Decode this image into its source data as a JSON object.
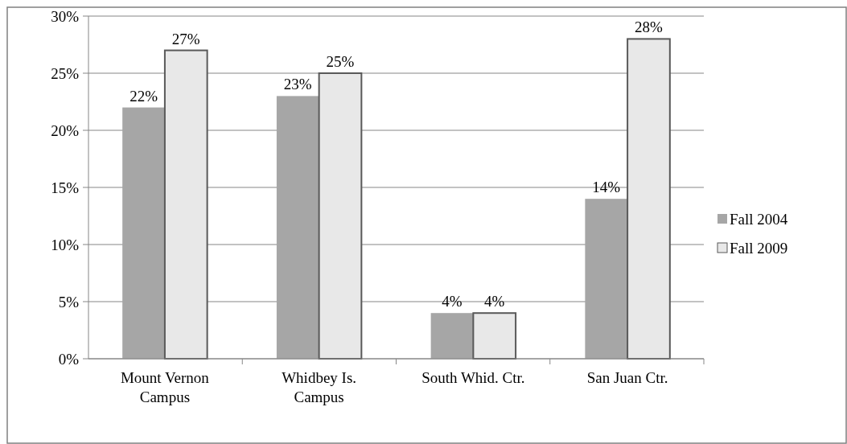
{
  "chart_data": {
    "type": "bar",
    "categories": [
      "Mount Vernon\nCampus",
      "Whidbey Is.\nCampus",
      "South Whid. Ctr.",
      "San Juan Ctr."
    ],
    "series": [
      {
        "name": "Fall 2004",
        "color": "#a6a6a6",
        "values": [
          22,
          23,
          4,
          14
        ],
        "value_labels": [
          "22%",
          "23%",
          "4%",
          "14%"
        ]
      },
      {
        "name": "Fall 2009",
        "color": "#e8e8e8",
        "values": [
          27,
          25,
          4,
          28
        ],
        "value_labels": [
          "27%",
          "25%",
          "4%",
          "28%"
        ]
      }
    ],
    "ylim": [
      0,
      30
    ],
    "yticks": [
      {
        "value": 0,
        "label": "0%"
      },
      {
        "value": 5,
        "label": "5%"
      },
      {
        "value": 10,
        "label": "10%"
      },
      {
        "value": 15,
        "label": "15%"
      },
      {
        "value": 20,
        "label": "20%"
      },
      {
        "value": 25,
        "label": "25%"
      },
      {
        "value": 30,
        "label": "30%"
      }
    ],
    "grid": "y",
    "legend": "right"
  }
}
